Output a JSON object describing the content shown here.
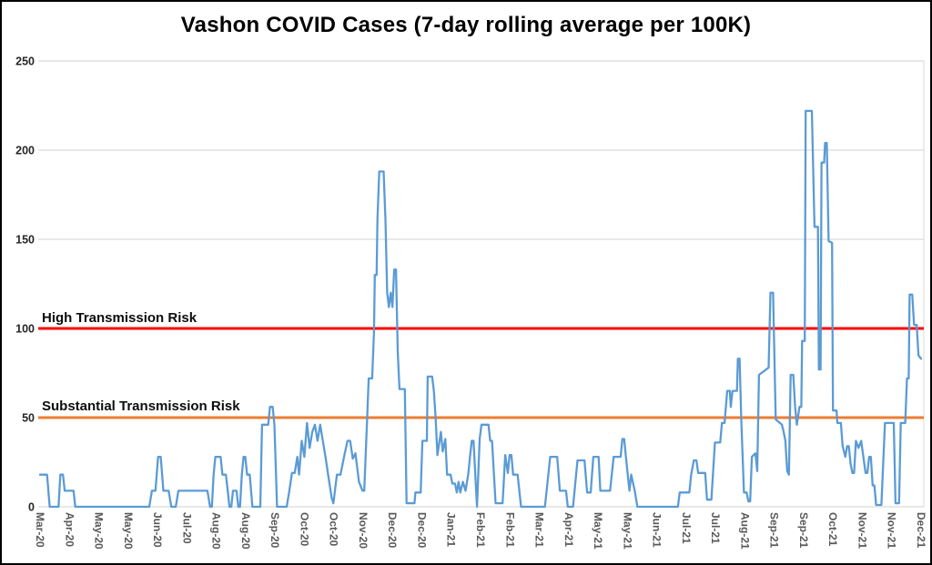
{
  "chart_data": {
    "type": "line",
    "title": "Vashon COVID Cases (7-day rolling average per 100K)",
    "xlabel": "",
    "ylabel": "",
    "ylim": [
      0,
      250
    ],
    "y_ticks": [
      0,
      50,
      100,
      150,
      200,
      250
    ],
    "grid": true,
    "grid_color": "#d9d9d9",
    "legend": "none",
    "axis_text_color": "#595959",
    "y_tick_color": "#262626",
    "x_tick_labels": [
      "Mar-20",
      "Apr-20",
      "May-20",
      "May-20",
      "Jun-20",
      "Jul-20",
      "Aug-20",
      "Aug-20",
      "Sep-20",
      "Oct-20",
      "Oct-20",
      "Nov-20",
      "Dec-20",
      "Dec-20",
      "Jan-21",
      "Feb-21",
      "Feb-21",
      "Mar-21",
      "Apr-21",
      "May-21",
      "May-21",
      "Jun-21",
      "Jul-21",
      "Jul-21",
      "Aug-21",
      "Sep-21",
      "Sep-21",
      "Oct-21",
      "Nov-21",
      "Nov-21",
      "Dec-21"
    ],
    "reference_lines": [
      {
        "name": "high-transmission-risk",
        "label": "High Transmission Risk",
        "value": 100,
        "color": "#ff0000"
      },
      {
        "name": "substantial-transmission-risk",
        "label": "Substantial Transmission Risk",
        "value": 50,
        "color": "#ed7d31"
      }
    ],
    "series": [
      {
        "name": "Vashon COVID cases, 7-day rolling average per 100K",
        "color": "#5b9bd5",
        "x_units": "axis position 0-1000 spanning Mar-2020 to Dec-2021",
        "points": [
          [
            0,
            18
          ],
          [
            8,
            18
          ],
          [
            11,
            0
          ],
          [
            21,
            0
          ],
          [
            23,
            18
          ],
          [
            26,
            18
          ],
          [
            28,
            9
          ],
          [
            38,
            9
          ],
          [
            40,
            0
          ],
          [
            124,
            0
          ],
          [
            127,
            9
          ],
          [
            131,
            9
          ],
          [
            134,
            28
          ],
          [
            137,
            28
          ],
          [
            140,
            9
          ],
          [
            146,
            9
          ],
          [
            149,
            0
          ],
          [
            154,
            0
          ],
          [
            157,
            9
          ],
          [
            190,
            9
          ],
          [
            193,
            0
          ],
          [
            195,
            0
          ],
          [
            197,
            18
          ],
          [
            199,
            28
          ],
          [
            205,
            28
          ],
          [
            207,
            18
          ],
          [
            211,
            18
          ],
          [
            213,
            9
          ],
          [
            215,
            0
          ],
          [
            217,
            0
          ],
          [
            219,
            9
          ],
          [
            223,
            9
          ],
          [
            225,
            0
          ],
          [
            227,
            0
          ],
          [
            229,
            18
          ],
          [
            231,
            28
          ],
          [
            233,
            28
          ],
          [
            235,
            18
          ],
          [
            238,
            18
          ],
          [
            241,
            0
          ],
          [
            250,
            0
          ],
          [
            252,
            46
          ],
          [
            259,
            46
          ],
          [
            261,
            56
          ],
          [
            264,
            56
          ],
          [
            266,
            46
          ],
          [
            269,
            0
          ],
          [
            280,
            0
          ],
          [
            283,
            9
          ],
          [
            286,
            19
          ],
          [
            289,
            19
          ],
          [
            292,
            28
          ],
          [
            294,
            18
          ],
          [
            297,
            37
          ],
          [
            300,
            28
          ],
          [
            303,
            47
          ],
          [
            306,
            33
          ],
          [
            309,
            42
          ],
          [
            312,
            46
          ],
          [
            315,
            37
          ],
          [
            318,
            46
          ],
          [
            321,
            37
          ],
          [
            324,
            28
          ],
          [
            327,
            18
          ],
          [
            331,
            5
          ],
          [
            333,
            2
          ],
          [
            337,
            18
          ],
          [
            341,
            18
          ],
          [
            345,
            28
          ],
          [
            349,
            37
          ],
          [
            352,
            37
          ],
          [
            355,
            27
          ],
          [
            358,
            30
          ],
          [
            362,
            14
          ],
          [
            366,
            9
          ],
          [
            368,
            9
          ],
          [
            371,
            46
          ],
          [
            373,
            72
          ],
          [
            377,
            72
          ],
          [
            379,
            98
          ],
          [
            380,
            130
          ],
          [
            382,
            130
          ],
          [
            383,
            161
          ],
          [
            385,
            188
          ],
          [
            390,
            188
          ],
          [
            392,
            161
          ],
          [
            394,
            120
          ],
          [
            396,
            112
          ],
          [
            398,
            120
          ],
          [
            400,
            112
          ],
          [
            402,
            133
          ],
          [
            404,
            133
          ],
          [
            406,
            87
          ],
          [
            408,
            66
          ],
          [
            414,
            66
          ],
          [
            416,
            2
          ],
          [
            425,
            2
          ],
          [
            426,
            8
          ],
          [
            432,
            8
          ],
          [
            434,
            37
          ],
          [
            439,
            37
          ],
          [
            440,
            73
          ],
          [
            445,
            73
          ],
          [
            447,
            65
          ],
          [
            449,
            50
          ],
          [
            451,
            29
          ],
          [
            455,
            42
          ],
          [
            457,
            31
          ],
          [
            460,
            38
          ],
          [
            462,
            18
          ],
          [
            466,
            18
          ],
          [
            468,
            13
          ],
          [
            471,
            13
          ],
          [
            473,
            8
          ],
          [
            475,
            14
          ],
          [
            477,
            8
          ],
          [
            480,
            14
          ],
          [
            483,
            9
          ],
          [
            486,
            18
          ],
          [
            488,
            28
          ],
          [
            490,
            37
          ],
          [
            492,
            37
          ],
          [
            494,
            18
          ],
          [
            496,
            0
          ],
          [
            499,
            38
          ],
          [
            501,
            46
          ],
          [
            509,
            46
          ],
          [
            511,
            37
          ],
          [
            513,
            37
          ],
          [
            517,
            2
          ],
          [
            525,
            2
          ],
          [
            528,
            29
          ],
          [
            531,
            19
          ],
          [
            533,
            29
          ],
          [
            535,
            29
          ],
          [
            537,
            18
          ],
          [
            542,
            18
          ],
          [
            546,
            0
          ],
          [
            573,
            0
          ],
          [
            575,
            9
          ],
          [
            579,
            28
          ],
          [
            587,
            28
          ],
          [
            590,
            9
          ],
          [
            597,
            9
          ],
          [
            599,
            0
          ],
          [
            605,
            0
          ],
          [
            610,
            26
          ],
          [
            618,
            26
          ],
          [
            621,
            8
          ],
          [
            625,
            8
          ],
          [
            628,
            28
          ],
          [
            634,
            28
          ],
          [
            636,
            9
          ],
          [
            647,
            9
          ],
          [
            651,
            28
          ],
          [
            655,
            28
          ],
          [
            659,
            28
          ],
          [
            661,
            38
          ],
          [
            663,
            38
          ],
          [
            665,
            28
          ],
          [
            667,
            18
          ],
          [
            669,
            9
          ],
          [
            671,
            18
          ],
          [
            675,
            9
          ],
          [
            678,
            0
          ],
          [
            724,
            0
          ],
          [
            726,
            8
          ],
          [
            737,
            8
          ],
          [
            739,
            18
          ],
          [
            742,
            26
          ],
          [
            745,
            26
          ],
          [
            747,
            19
          ],
          [
            755,
            19
          ],
          [
            757,
            4
          ],
          [
            762,
            4
          ],
          [
            766,
            36
          ],
          [
            772,
            36
          ],
          [
            774,
            47
          ],
          [
            777,
            47
          ],
          [
            780,
            65
          ],
          [
            783,
            65
          ],
          [
            784,
            56
          ],
          [
            786,
            65
          ],
          [
            791,
            65
          ],
          [
            792,
            83
          ],
          [
            794,
            83
          ],
          [
            796,
            48
          ],
          [
            799,
            8
          ],
          [
            802,
            8
          ],
          [
            804,
            3
          ],
          [
            806,
            3
          ],
          [
            808,
            28
          ],
          [
            812,
            30
          ],
          [
            814,
            20
          ],
          [
            815,
            46
          ],
          [
            816,
            74
          ],
          [
            827,
            78
          ],
          [
            829,
            120
          ],
          [
            832,
            120
          ],
          [
            835,
            49
          ],
          [
            842,
            46
          ],
          [
            844,
            42
          ],
          [
            846,
            37
          ],
          [
            848,
            20
          ],
          [
            850,
            18
          ],
          [
            852,
            74
          ],
          [
            855,
            74
          ],
          [
            857,
            56
          ],
          [
            859,
            46
          ],
          [
            862,
            56
          ],
          [
            864,
            56
          ],
          [
            865,
            93
          ],
          [
            868,
            93
          ],
          [
            869,
            222
          ],
          [
            876,
            222
          ],
          [
            879,
            157
          ],
          [
            883,
            157
          ],
          [
            884,
            77
          ],
          [
            886,
            77
          ],
          [
            887,
            193
          ],
          [
            890,
            193
          ],
          [
            891,
            204
          ],
          [
            893,
            204
          ],
          [
            895,
            149
          ],
          [
            899,
            148
          ],
          [
            900,
            54
          ],
          [
            904,
            54
          ],
          [
            905,
            47
          ],
          [
            909,
            47
          ],
          [
            911,
            34
          ],
          [
            914,
            28
          ],
          [
            916,
            34
          ],
          [
            918,
            34
          ],
          [
            920,
            24
          ],
          [
            922,
            19
          ],
          [
            924,
            19
          ],
          [
            926,
            37
          ],
          [
            929,
            33
          ],
          [
            932,
            37
          ],
          [
            937,
            19
          ],
          [
            939,
            19
          ],
          [
            941,
            28
          ],
          [
            943,
            28
          ],
          [
            945,
            12
          ],
          [
            947,
            12
          ],
          [
            949,
            1
          ],
          [
            955,
            1
          ],
          [
            959,
            47
          ],
          [
            969,
            47
          ],
          [
            971,
            2
          ],
          [
            975,
            2
          ],
          [
            977,
            47
          ],
          [
            982,
            47
          ],
          [
            984,
            72
          ],
          [
            986,
            72
          ],
          [
            987,
            119
          ],
          [
            990,
            119
          ],
          [
            992,
            102
          ],
          [
            995,
            102
          ],
          [
            997,
            85
          ],
          [
            1000,
            83
          ]
        ]
      }
    ]
  }
}
